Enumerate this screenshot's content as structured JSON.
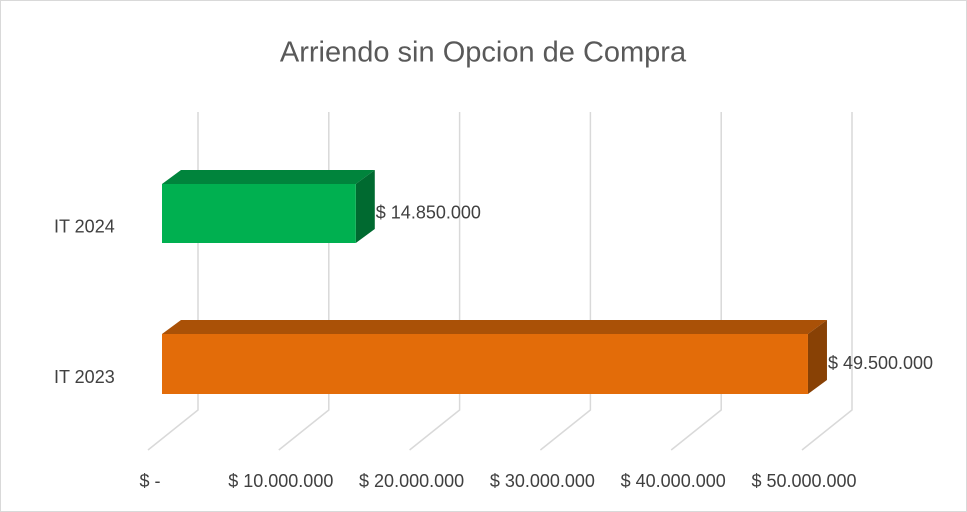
{
  "chart_data": {
    "type": "bar3d_horizontal",
    "title": "Arriendo sin Opcion de Compra",
    "categories": [
      "IT 2024",
      "IT 2023"
    ],
    "values": [
      14850000,
      49500000
    ],
    "value_labels": [
      "$ 14.850.000",
      "$ 49.500.000"
    ],
    "colors": [
      "#00b050",
      "#e36c09"
    ],
    "xlim": [
      0,
      50000000
    ],
    "xticks": [
      {
        "value": 0,
        "label": "$ -"
      },
      {
        "value": 10000000,
        "label": "$ 10.000.000"
      },
      {
        "value": 20000000,
        "label": "$ 20.000.000"
      },
      {
        "value": 30000000,
        "label": "$ 30.000.000"
      },
      {
        "value": 40000000,
        "label": "$ 40.000.000"
      },
      {
        "value": 50000000,
        "label": "$ 50.000.000"
      }
    ],
    "grid": true
  }
}
